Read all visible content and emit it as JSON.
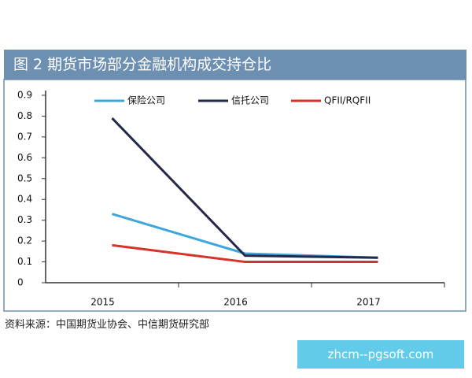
{
  "header": {
    "title": "图 2  期货市场部分金融机构成交持仓比"
  },
  "chart_data": {
    "type": "line",
    "categories": [
      "2015",
      "2016",
      "2017"
    ],
    "series": [
      {
        "name": "保险公司",
        "color": "#3ea6db",
        "values": [
          0.33,
          0.14,
          0.12
        ]
      },
      {
        "name": "信托公司",
        "color": "#25284a",
        "values": [
          0.79,
          0.13,
          0.12
        ]
      },
      {
        "name": "QFII/RQFII",
        "color": "#d8322a",
        "values": [
          0.18,
          0.1,
          0.1
        ]
      }
    ],
    "ylim": [
      0,
      0.9
    ],
    "yticks": [
      0,
      0.1,
      0.2,
      0.3,
      0.4,
      0.5,
      0.6,
      0.7,
      0.8,
      0.9
    ],
    "grid": false,
    "legend": "top"
  },
  "source": "资料来源：中国期货业协会、中信期货研究部",
  "watermark": "zhcm--pgsoft.com"
}
